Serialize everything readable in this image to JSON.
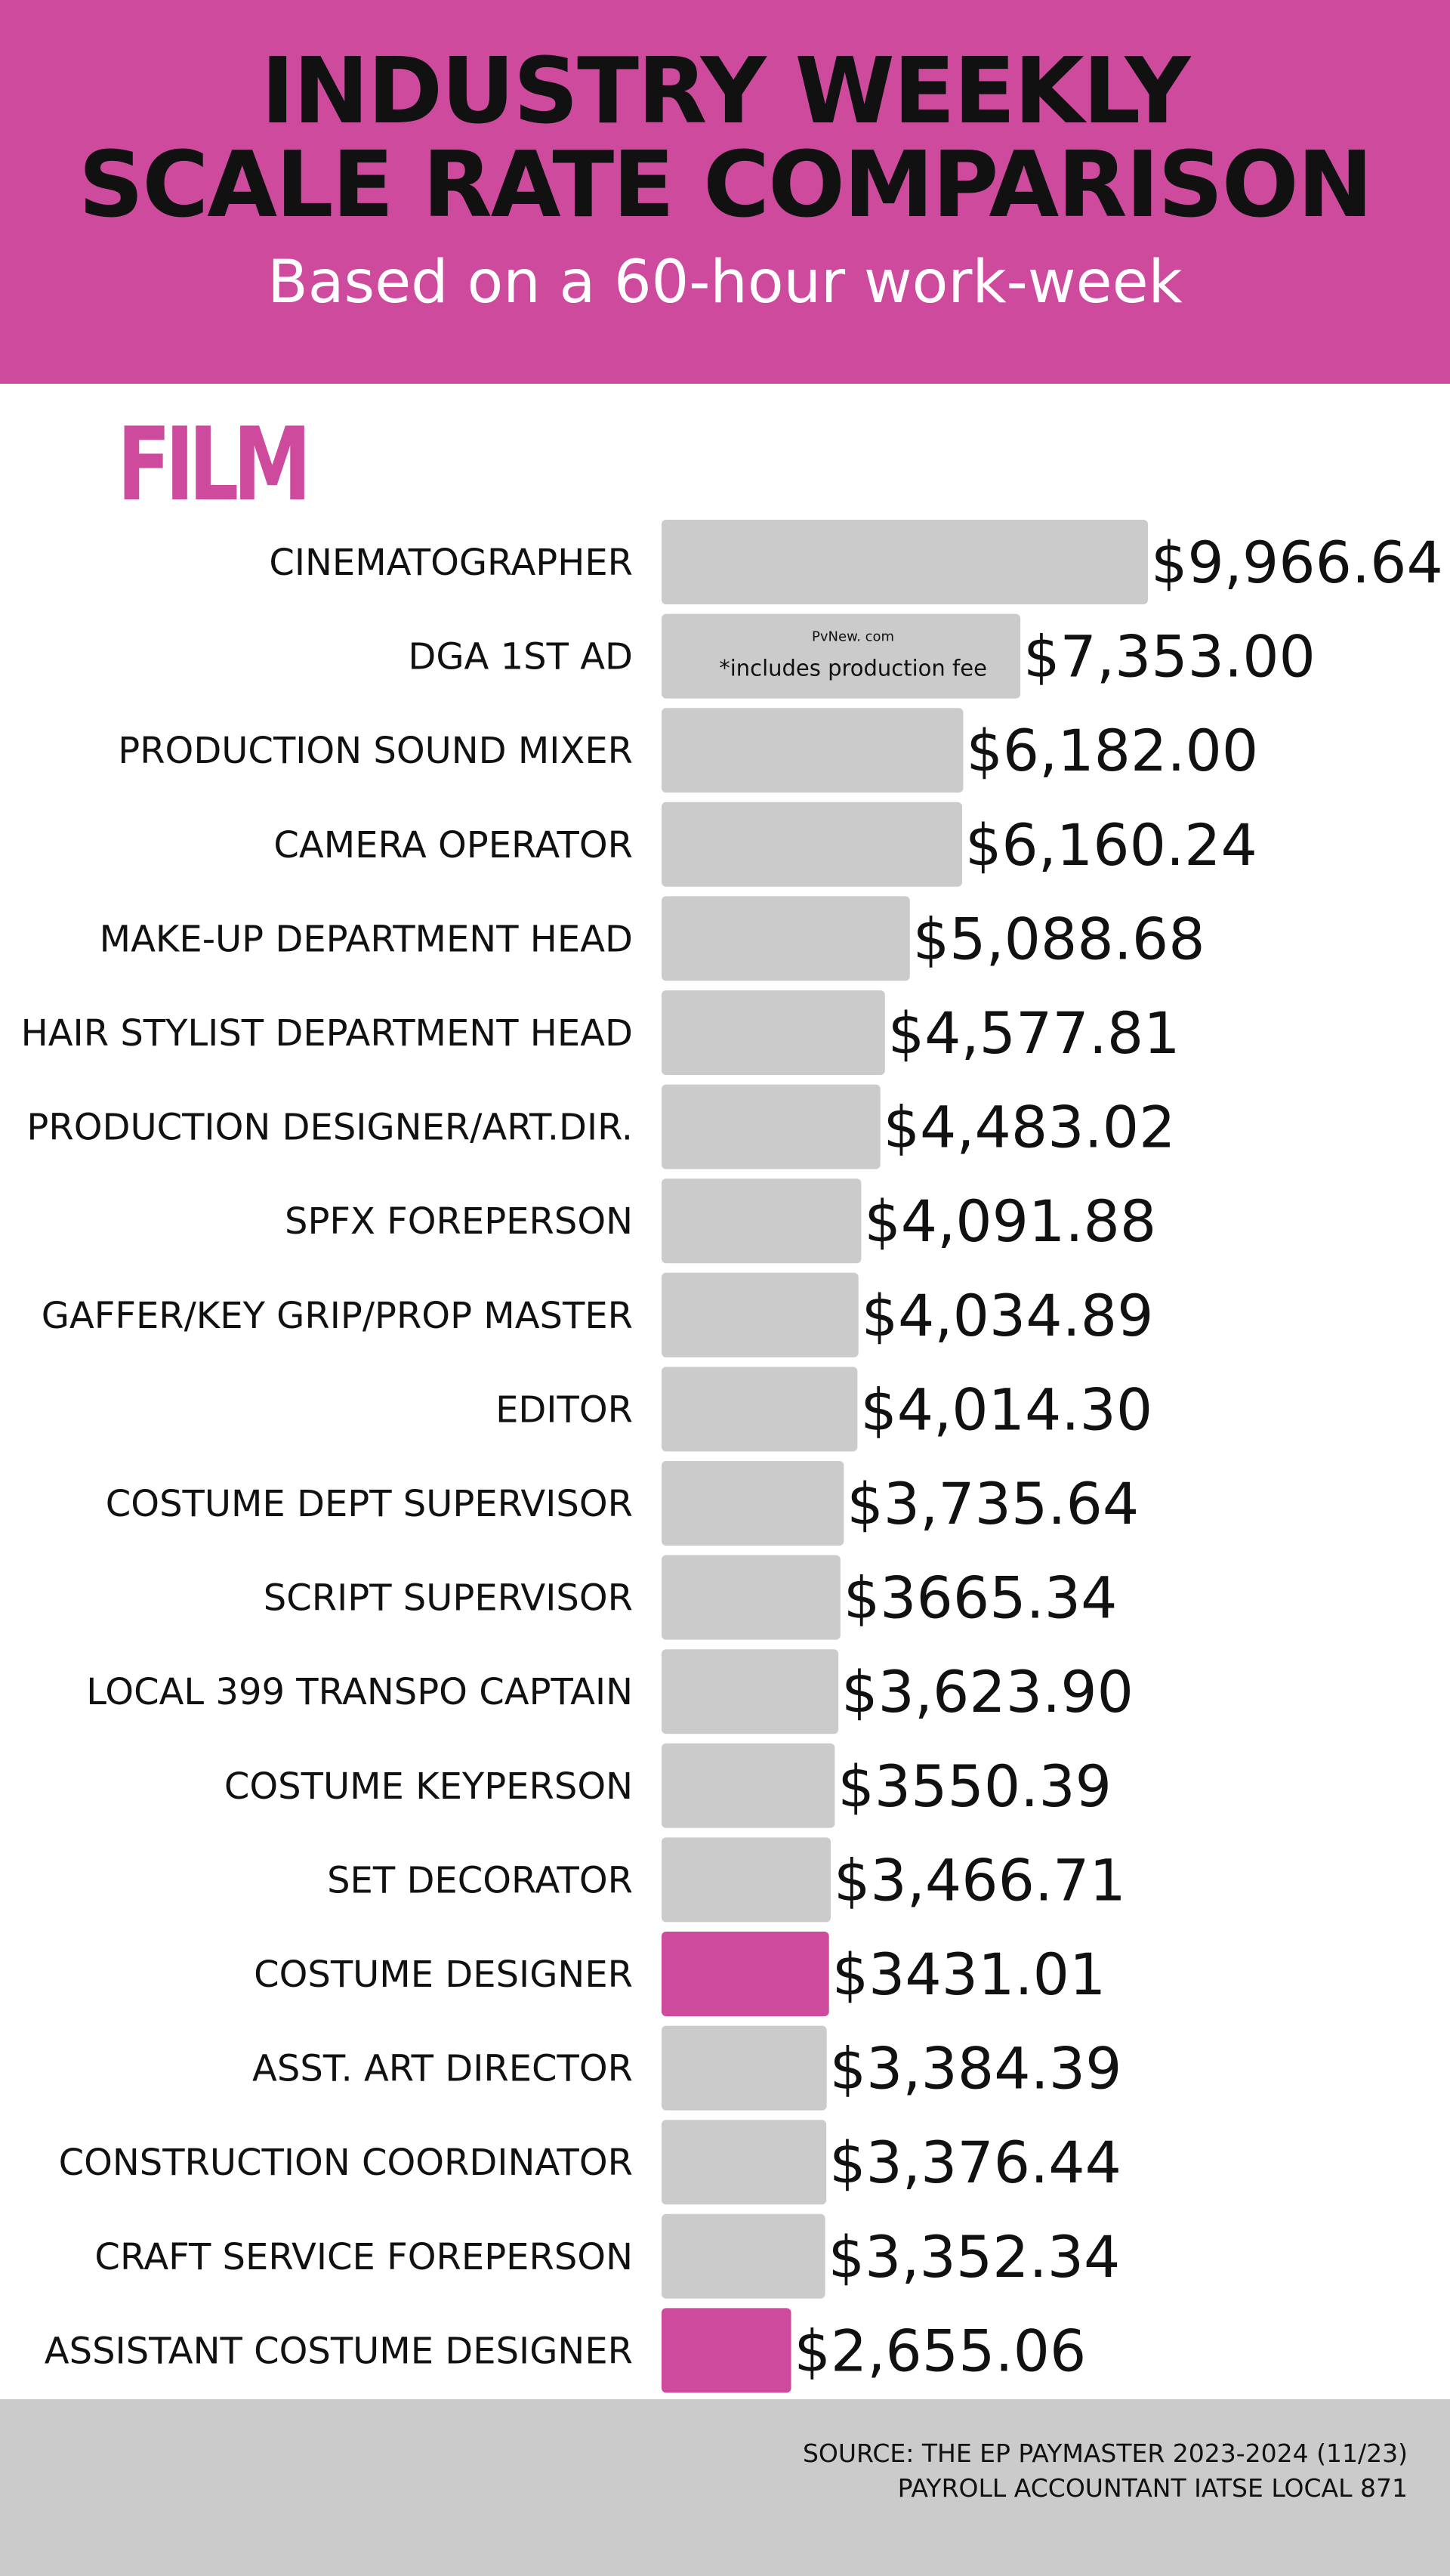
{
  "header": {
    "title_line_1": "INDUSTRY WEEKLY",
    "title_line_2": "SCALE RATE COMPARISON",
    "subtitle": "Based on a 60-hour work-week"
  },
  "section_label": "FILM",
  "footer": {
    "source_line_1": "SOURCE:  THE EP PAYMASTER 2023-2024 (11/23)",
    "source_line_2": "PAYROLL ACCOUNTANT IATSE LOCAL 871"
  },
  "colors": {
    "accent": "#cd4a9c",
    "bar_default": "#cbcbcb",
    "footer_bg": "#cbcbcb",
    "text": "#111111"
  },
  "chart_data": {
    "type": "bar",
    "orientation": "horizontal",
    "title": "INDUSTRY WEEKLY SCALE RATE COMPARISON",
    "subtitle": "Based on a 60-hour work-week",
    "categories": [
      "CINEMATOGRAPHER",
      "DGA 1ST AD",
      "PRODUCTION SOUND MIXER",
      "CAMERA OPERATOR",
      "MAKE-UP DEPARTMENT HEAD",
      "HAIR STYLIST DEPARTMENT HEAD",
      "PRODUCTION DESIGNER/ART.DIR.",
      "SPFX FOREPERSON",
      "GAFFER/KEY GRIP/PROP MASTER",
      "EDITOR",
      "COSTUME DEPT SUPERVISOR",
      "SCRIPT SUPERVISOR",
      "LOCAL 399 TRANSPO CAPTAIN",
      "COSTUME KEYPERSON",
      "SET DECORATOR",
      "COSTUME DESIGNER",
      "ASST. ART DIRECTOR",
      "CONSTRUCTION COORDINATOR",
      "CRAFT SERVICE FOREPERSON",
      "ASSISTANT COSTUME DESIGNER"
    ],
    "values": [
      9966.64,
      7353.0,
      6182.0,
      6160.24,
      5088.68,
      4577.81,
      4483.02,
      4091.88,
      4034.89,
      4014.3,
      3735.64,
      3665.34,
      3623.9,
      3550.39,
      3466.71,
      3431.01,
      3384.39,
      3376.44,
      3352.34,
      2655.06
    ],
    "value_labels": [
      "$9,966.64",
      "$7,353.00",
      "$6,182.00",
      "$6,160.24",
      "$5,088.68",
      "$4,577.81",
      "$4,483.02",
      "$4,091.88",
      "$4,034.89",
      "$4,014.30",
      "$3,735.64",
      "$3665.34",
      "$3,623.90",
      "$3550.39",
      "$3,466.71",
      "$3431.01",
      "$3,384.39",
      "$3,376.44",
      "$3,352.34",
      "$2,655.06"
    ],
    "highlighted": [
      false,
      false,
      false,
      false,
      false,
      false,
      false,
      false,
      false,
      false,
      false,
      false,
      false,
      false,
      false,
      true,
      false,
      false,
      false,
      true
    ],
    "annotations": [
      {
        "category_index": 1,
        "lines": [
          "PvNew. com",
          "*includes production fee"
        ]
      }
    ],
    "xlim": [
      0,
      9966.64
    ],
    "grid": false,
    "legend": "none"
  }
}
